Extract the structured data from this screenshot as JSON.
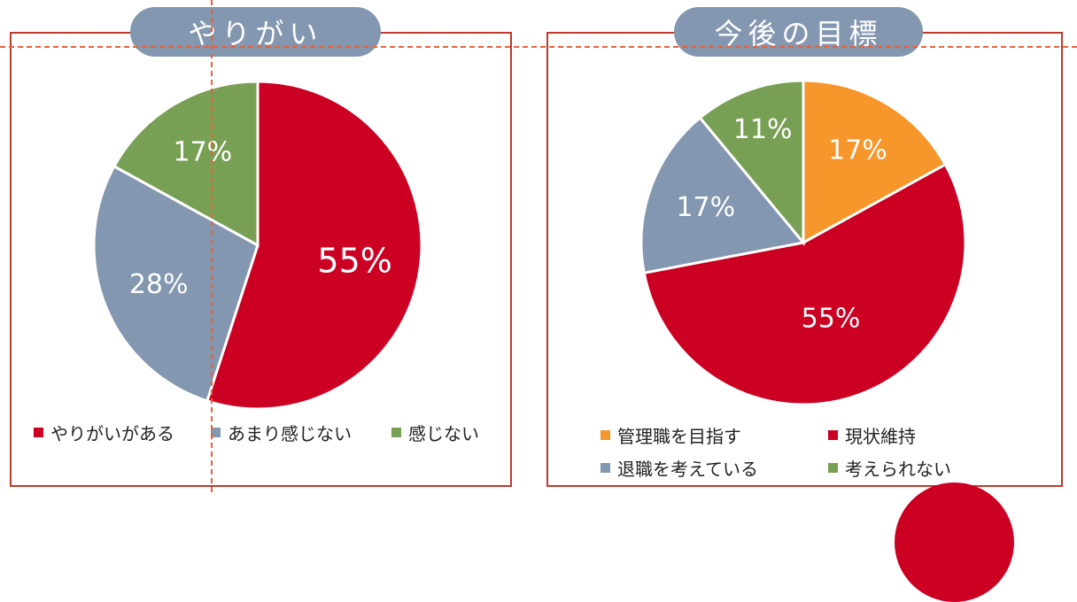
{
  "colors": {
    "red": "#cc0022",
    "gray": "#8497b0",
    "green": "#77a055",
    "orange": "#f7962b",
    "border": "#c0392b"
  },
  "chart_data": [
    {
      "type": "pie",
      "title": "やりがい",
      "categories": [
        "やりがいがある",
        "あまり感じない",
        "感じない"
      ],
      "values": [
        55,
        28,
        17
      ],
      "labels": [
        "55%",
        "28%",
        "17%"
      ],
      "colors": [
        "#cc0022",
        "#8497b0",
        "#77a055"
      ],
      "legend": "bottom"
    },
    {
      "type": "pie",
      "title": "今後の目標",
      "categories": [
        "管理職を目指す",
        "現状維持",
        "退職を考えている",
        "考えられない"
      ],
      "values": [
        17,
        55,
        17,
        11
      ],
      "labels": [
        "17%",
        "55%",
        "17%",
        "11%"
      ],
      "colors": [
        "#f7962b",
        "#cc0022",
        "#8497b0",
        "#77a055"
      ],
      "legend": "bottom"
    }
  ]
}
